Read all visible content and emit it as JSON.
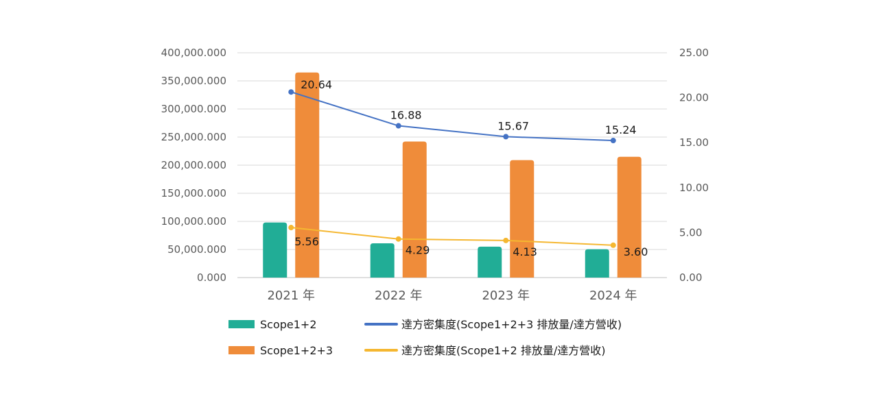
{
  "chart_data": {
    "type": "bar",
    "categories": [
      "2021 年",
      "2022 年",
      "2023 年",
      "2024 年"
    ],
    "y_left": {
      "ylim": [
        0,
        400000
      ],
      "ticks": [
        0,
        50000,
        100000,
        150000,
        200000,
        250000,
        300000,
        350000,
        400000
      ],
      "tick_labels": [
        "0.000",
        "50,000.000",
        "100,000.000",
        "150,000.000",
        "200,000.000",
        "250,000.000",
        "300,000.000",
        "350,000.000",
        "400,000.000"
      ]
    },
    "y_right": {
      "ylim": [
        0,
        25
      ],
      "ticks": [
        0,
        5,
        10,
        15,
        20,
        25
      ],
      "tick_labels": [
        "0.00",
        "5.00",
        "10.00",
        "15.00",
        "20.00",
        "25.00"
      ]
    },
    "grid": true,
    "legend_position": "bottom",
    "bar_series": [
      {
        "name": "Scope1+2",
        "values": [
          98000,
          61000,
          55000,
          50500
        ],
        "color": "#21ad96"
      },
      {
        "name": "Scope1+2+3",
        "values": [
          365000,
          242000,
          209000,
          215000
        ],
        "color": "#ef8c3a"
      }
    ],
    "line_series": [
      {
        "name": "達方密集度(Scope1+2+3 排放量/達方營收)",
        "values": [
          20.64,
          16.88,
          15.67,
          15.24
        ],
        "labels": [
          "20.64",
          "16.88",
          "15.67",
          "15.24"
        ],
        "color": "#4472c4"
      },
      {
        "name": "達方密集度(Scope1+2 排放量/達方營收)",
        "values": [
          5.56,
          4.29,
          4.13,
          3.6
        ],
        "labels": [
          "5.56",
          "4.29",
          "4.13",
          "3.60"
        ],
        "color": "#f5b731"
      }
    ],
    "colors": {
      "grid": "#d9d9d9",
      "axis": "#bfbfbf"
    }
  }
}
